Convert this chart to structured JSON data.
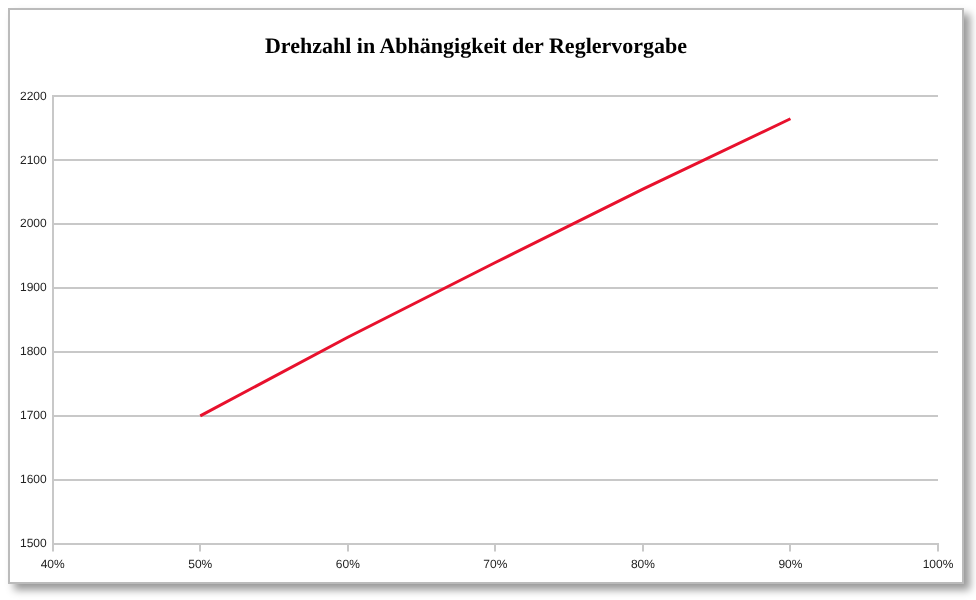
{
  "chart_data": {
    "type": "line",
    "title": "Drehzahl in Abhängigkeit der Reglervorgabe",
    "x": [
      50,
      60,
      70,
      80,
      90
    ],
    "series": [
      {
        "color": "#e8112d",
        "values": [
          1700,
          1823,
          1940,
          2055,
          2165
        ]
      }
    ],
    "xlim": [
      40,
      100
    ],
    "xticks": [
      {
        "value": 40,
        "label": "40%"
      },
      {
        "value": 50,
        "label": "50%"
      },
      {
        "value": 60,
        "label": "60%"
      },
      {
        "value": 70,
        "label": "70%"
      },
      {
        "value": 80,
        "label": "80%"
      },
      {
        "value": 90,
        "label": "90%"
      },
      {
        "value": 100,
        "label": "100%"
      }
    ],
    "ylim": [
      1500,
      2200
    ],
    "yticks": [
      1500,
      1600,
      1700,
      1800,
      1900,
      2000,
      2100,
      2200
    ],
    "grid": "y",
    "legend": false,
    "marker": "none",
    "line_style": "solid"
  }
}
